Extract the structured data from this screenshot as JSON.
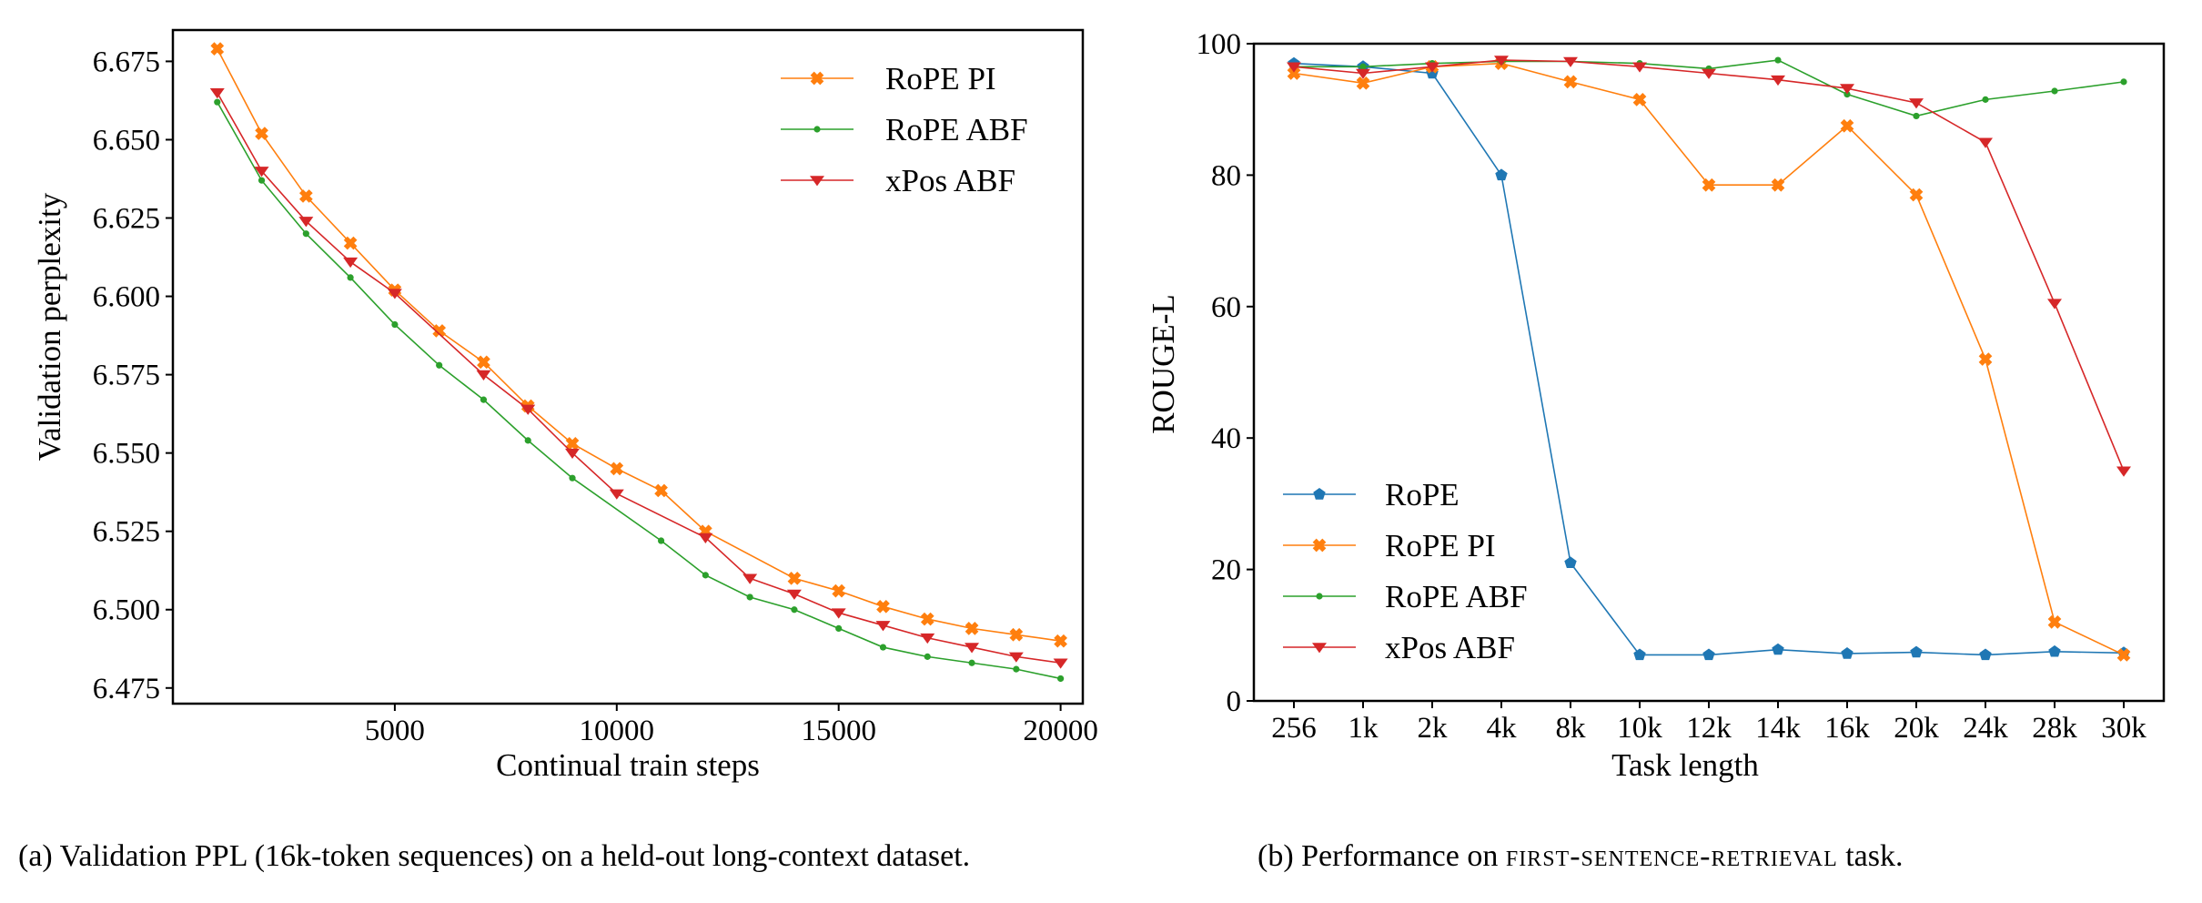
{
  "colors": {
    "rope": "#1f77b4",
    "rope_pi": "#ff7f0e",
    "rope_abf": "#2ca02c",
    "xpos_abf": "#d62728"
  },
  "chart_data": [
    {
      "type": "line",
      "title": "",
      "xlabel": "Continual train steps",
      "ylabel": "Validation perplexity",
      "xlim": [
        0,
        20500
      ],
      "ylim": [
        6.47,
        6.685
      ],
      "xticks": [
        5000,
        10000,
        15000,
        20000
      ],
      "xtick_labels": [
        "5000",
        "10000",
        "15000",
        "20000"
      ],
      "yticks": [
        6.475,
        6.5,
        6.525,
        6.55,
        6.575,
        6.6,
        6.625,
        6.65,
        6.675
      ],
      "ytick_labels": [
        "6.475",
        "6.500",
        "6.525",
        "6.550",
        "6.575",
        "6.600",
        "6.625",
        "6.650",
        "6.675"
      ],
      "grid": false,
      "legend": "top-right",
      "x": [
        1000,
        2000,
        3000,
        4000,
        5000,
        6000,
        7000,
        8000,
        9000,
        10000,
        11000,
        12000,
        13000,
        14000,
        15000,
        16000,
        17000,
        18000,
        19000,
        20000
      ],
      "series": [
        {
          "name": "RoPE PI",
          "color": "#ff7f0e",
          "marker": "x",
          "values": [
            6.679,
            6.652,
            6.632,
            6.617,
            6.602,
            6.589,
            6.579,
            6.565,
            6.553,
            6.545,
            6.538,
            6.525,
            null,
            6.51,
            6.506,
            6.501,
            6.497,
            6.494,
            6.492,
            6.49
          ]
        },
        {
          "name": "RoPE ABF",
          "color": "#2ca02c",
          "marker": "dot",
          "values": [
            6.662,
            6.637,
            6.62,
            6.606,
            6.591,
            6.578,
            6.567,
            6.554,
            6.542,
            null,
            6.522,
            6.511,
            6.504,
            6.5,
            6.494,
            6.488,
            6.485,
            6.483,
            6.481,
            6.478
          ]
        },
        {
          "name": "xPos ABF",
          "color": "#d62728",
          "marker": "tri",
          "values": [
            6.665,
            6.64,
            6.624,
            6.611,
            6.601,
            null,
            6.575,
            6.564,
            6.55,
            6.537,
            null,
            6.523,
            6.51,
            6.505,
            6.499,
            6.495,
            6.491,
            6.488,
            6.485,
            6.483
          ]
        }
      ]
    },
    {
      "type": "line",
      "title": "",
      "xlabel": "Task length",
      "ylabel": "ROUGE-L",
      "ylim": [
        0,
        100
      ],
      "yticks": [
        0,
        20,
        40,
        60,
        80,
        100
      ],
      "ytick_labels": [
        "0",
        "20",
        "40",
        "60",
        "80",
        "100"
      ],
      "categories": [
        "256",
        "1k",
        "2k",
        "4k",
        "8k",
        "10k",
        "12k",
        "14k",
        "16k",
        "20k",
        "24k",
        "28k",
        "30k"
      ],
      "grid": false,
      "legend": "bottom-left",
      "series": [
        {
          "name": "RoPE",
          "color": "#1f77b4",
          "marker": "pent",
          "values": [
            97,
            96.5,
            95.5,
            80,
            21,
            7,
            7,
            7.8,
            7.2,
            7.4,
            7,
            7.5,
            7.3
          ]
        },
        {
          "name": "RoPE PI",
          "color": "#ff7f0e",
          "marker": "x",
          "values": [
            95.5,
            94,
            96.5,
            97,
            94.2,
            91.5,
            78.5,
            78.5,
            87.5,
            77,
            52,
            12,
            7
          ]
        },
        {
          "name": "RoPE ABF",
          "color": "#2ca02c",
          "marker": "dot",
          "values": [
            96.5,
            96.5,
            97,
            97.3,
            97.3,
            97,
            96.2,
            97.5,
            92.3,
            89,
            91.5,
            92.8,
            94.2
          ]
        },
        {
          "name": "xPos ABF",
          "color": "#d62728",
          "marker": "tri",
          "values": [
            96.5,
            95.5,
            96.5,
            97.5,
            97.3,
            96.5,
            95.5,
            94.5,
            93.2,
            91,
            85,
            60.5,
            35
          ]
        }
      ]
    }
  ],
  "captions": {
    "a": "(a) Validation PPL (16k-token sequences) on a held-out long-context dataset.",
    "b_prefix": "(b) Performance on ",
    "b_task": "first-sentence-retrieval",
    "b_suffix": " task."
  }
}
